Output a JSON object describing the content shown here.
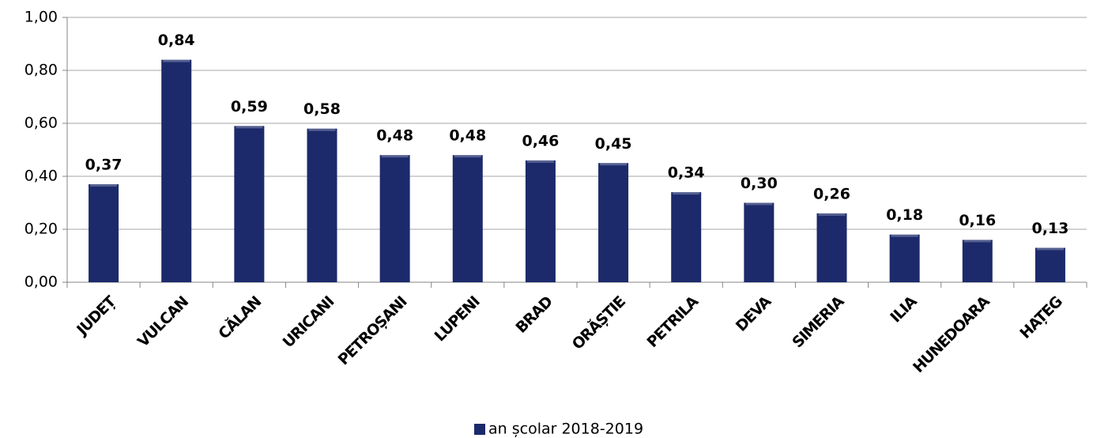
{
  "chart_data": {
    "type": "bar",
    "categories": [
      "JUDEȚ",
      "VULCAN",
      "CĂLAN",
      "URICANI",
      "PETROȘANI",
      "LUPENI",
      "BRAD",
      "ORĂȘTIE",
      "PETRILA",
      "DEVA",
      "SIMERIA",
      "ILIA",
      "HUNEDOARA",
      "HAȚEG"
    ],
    "series": [
      {
        "name": "an școlar 2018-2019",
        "color": "#1c2a6b",
        "values": [
          0.37,
          0.84,
          0.59,
          0.58,
          0.48,
          0.48,
          0.46,
          0.45,
          0.34,
          0.3,
          0.26,
          0.18,
          0.16,
          0.13
        ],
        "value_labels": [
          "0,37",
          "0,84",
          "0,59",
          "0,58",
          "0,48",
          "0,48",
          "0,46",
          "0,45",
          "0,34",
          "0,30",
          "0,26",
          "0,18",
          "0,16",
          "0,13"
        ]
      }
    ],
    "ylim": [
      0,
      1
    ],
    "yticks": [
      {
        "value": 0,
        "label": "0,00"
      },
      {
        "value": 0.2,
        "label": "0,20"
      },
      {
        "value": 0.4,
        "label": "0,40"
      },
      {
        "value": 0.6,
        "label": "0,60"
      },
      {
        "value": 0.8,
        "label": "0,80"
      },
      {
        "value": 1,
        "label": "1,00"
      }
    ],
    "grid": true,
    "legend": "bottom"
  }
}
